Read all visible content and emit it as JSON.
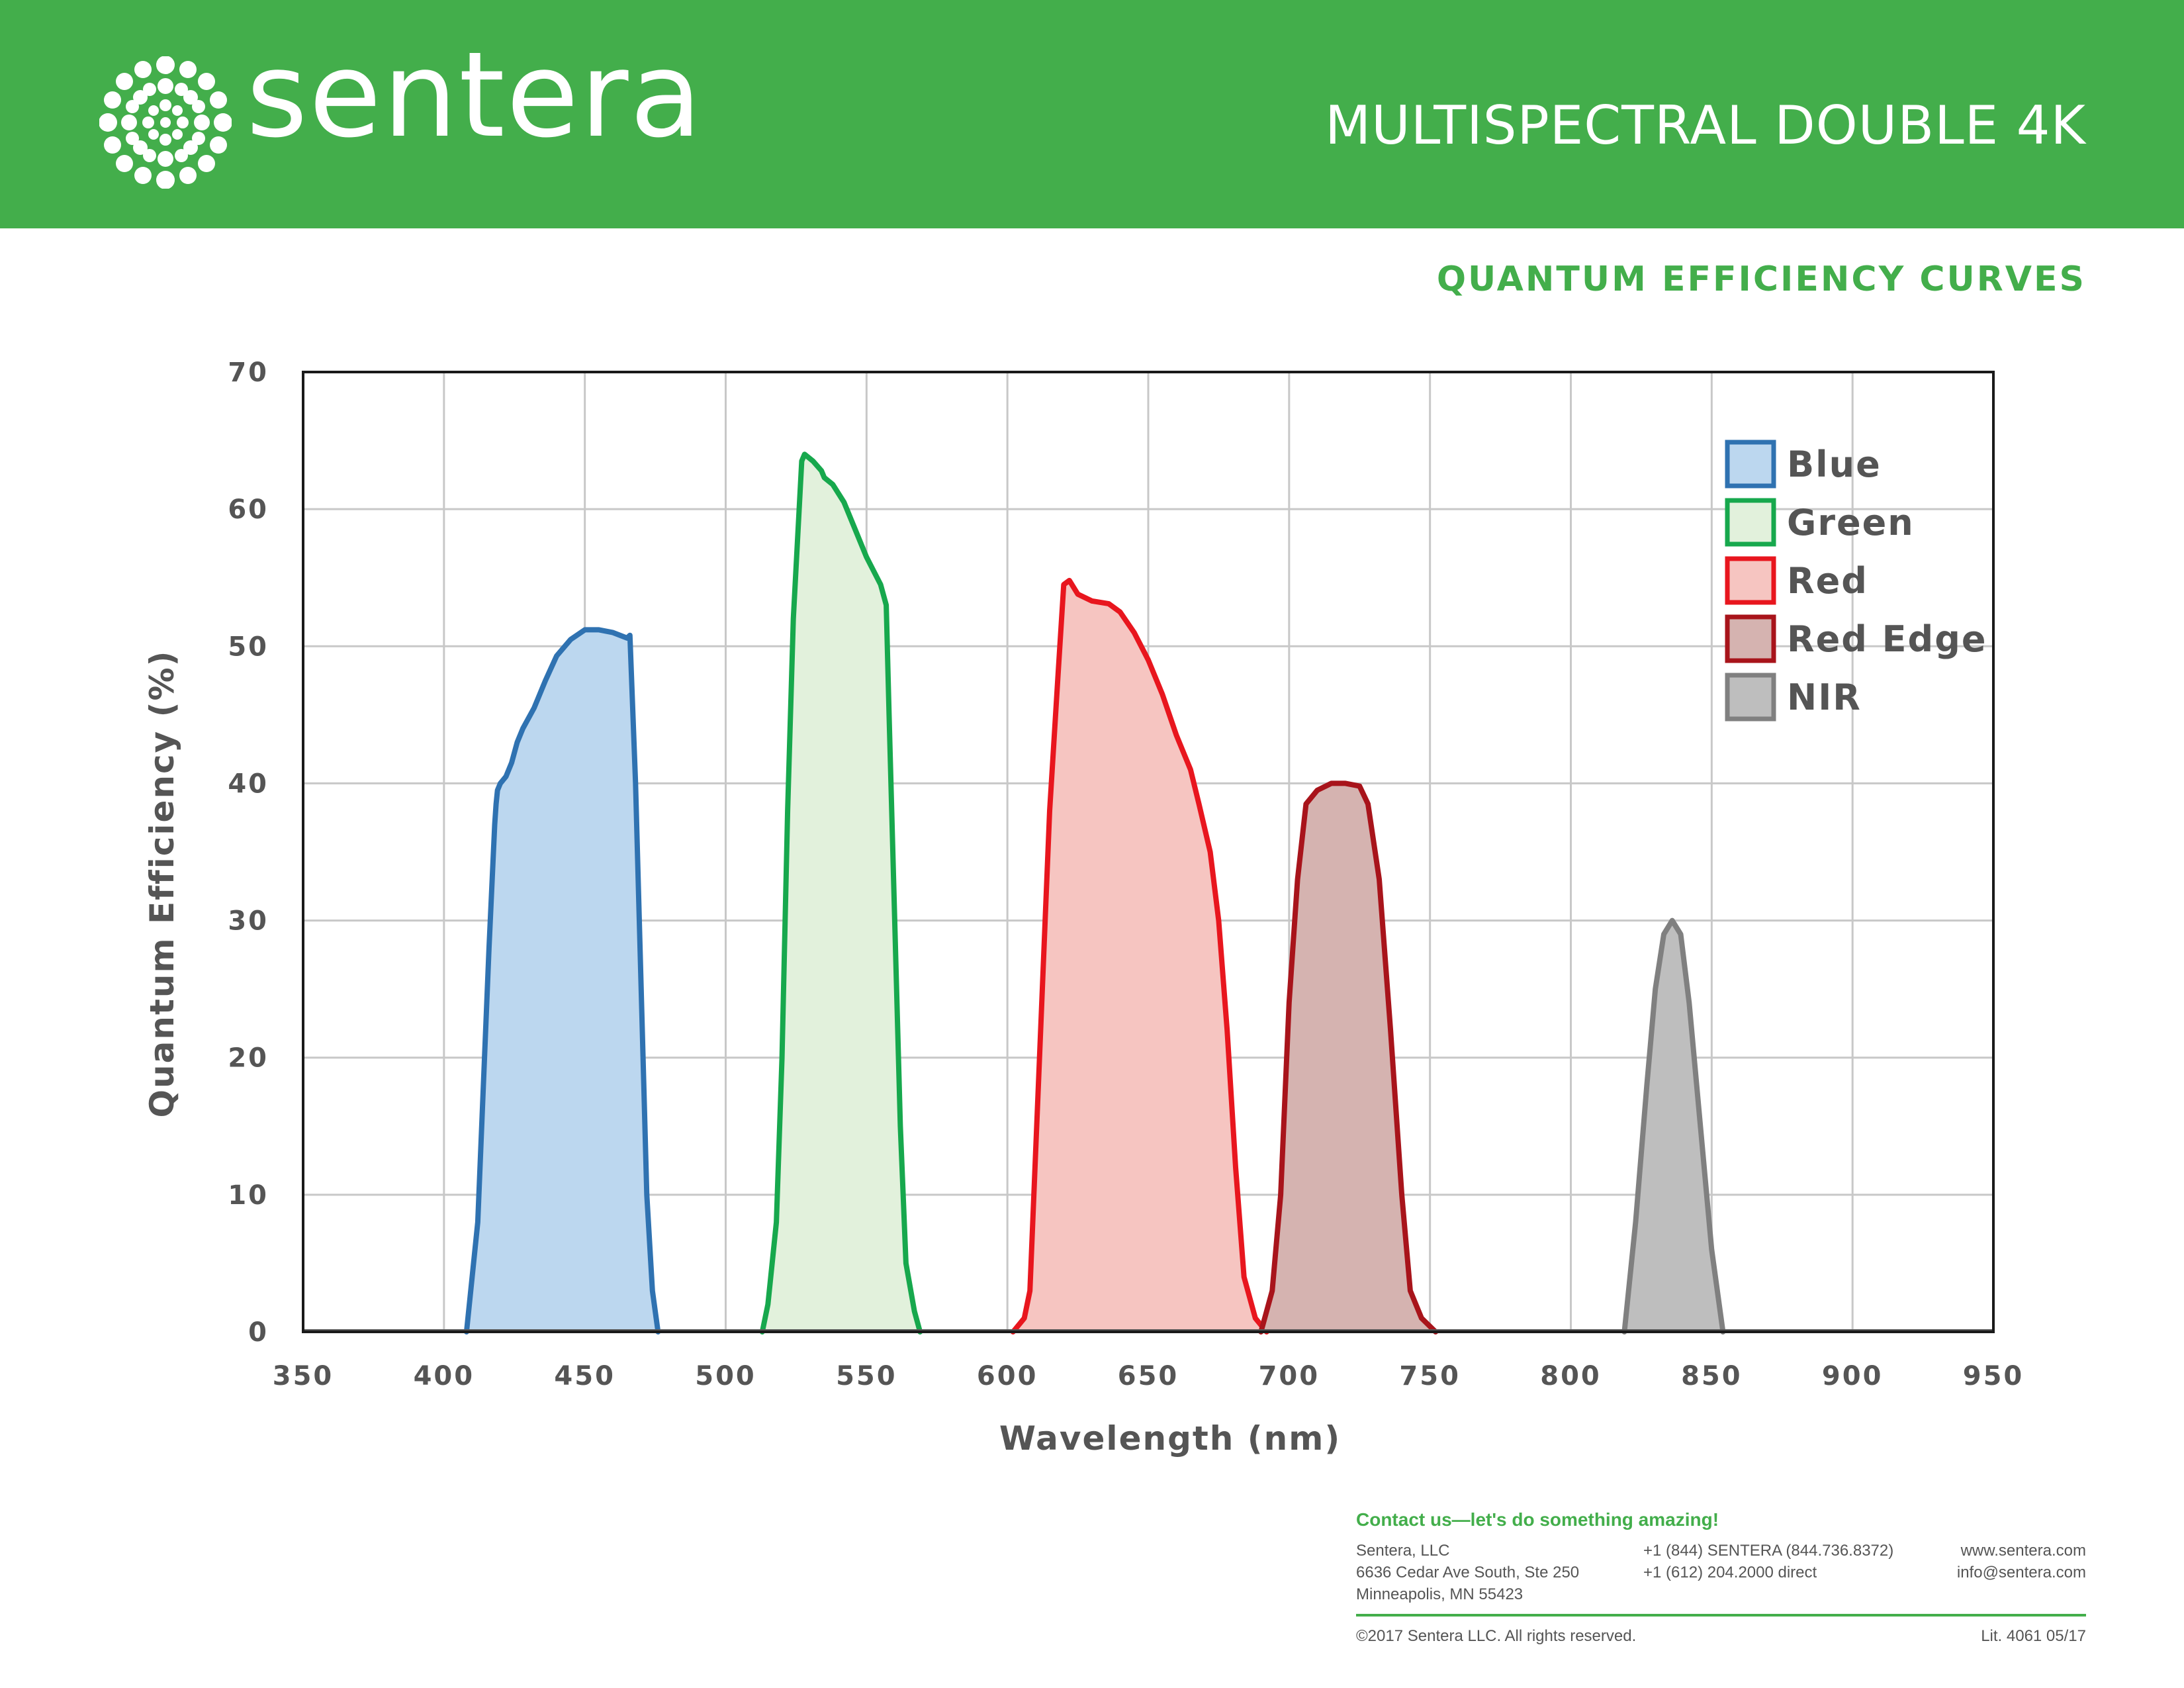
{
  "header": {
    "brand": "sentera",
    "product_title": "MULTISPECTRAL DOUBLE 4K",
    "background_color": "#43ae4b"
  },
  "section_title": "QUANTUM EFFICIENCY CURVES",
  "chart_data": {
    "type": "area",
    "title": "",
    "xlabel": "Wavelength (nm)",
    "ylabel": "Quantum Efficiency (%)",
    "xlim": [
      350,
      950
    ],
    "ylim": [
      0,
      70
    ],
    "x_ticks": [
      350,
      400,
      450,
      500,
      550,
      600,
      650,
      700,
      750,
      800,
      850,
      900,
      950
    ],
    "y_ticks": [
      0,
      10,
      20,
      30,
      40,
      50,
      60,
      70
    ],
    "grid": true,
    "legend_position": "top-right",
    "series": [
      {
        "name": "Blue",
        "stroke": "#2f72b1",
        "fill": "#bcd7ef",
        "points": [
          [
            408,
            0
          ],
          [
            412,
            8
          ],
          [
            414,
            18
          ],
          [
            416,
            28
          ],
          [
            418,
            37
          ],
          [
            418.5,
            38.5
          ],
          [
            419,
            39.5
          ],
          [
            420,
            40
          ],
          [
            422,
            40.5
          ],
          [
            424,
            41.5
          ],
          [
            426,
            43
          ],
          [
            428,
            44
          ],
          [
            432,
            45.5
          ],
          [
            436,
            47.5
          ],
          [
            440,
            49.3
          ],
          [
            445,
            50.5
          ],
          [
            450,
            51.2
          ],
          [
            455,
            51.2
          ],
          [
            460,
            51
          ],
          [
            465,
            50.6
          ],
          [
            466,
            50.8
          ],
          [
            468,
            40
          ],
          [
            470,
            25
          ],
          [
            472,
            10
          ],
          [
            474,
            3
          ],
          [
            476,
            0
          ]
        ]
      },
      {
        "name": "Green",
        "stroke": "#17a84d",
        "fill": "#e2f1dc",
        "points": [
          [
            513,
            0
          ],
          [
            515,
            2
          ],
          [
            518,
            8
          ],
          [
            520,
            20
          ],
          [
            522,
            38
          ],
          [
            524,
            52
          ],
          [
            527,
            63.5
          ],
          [
            528,
            64
          ],
          [
            531,
            63.5
          ],
          [
            534,
            62.8
          ],
          [
            535,
            62.3
          ],
          [
            538,
            61.8
          ],
          [
            542,
            60.5
          ],
          [
            546,
            58.5
          ],
          [
            550,
            56.5
          ],
          [
            555,
            54.5
          ],
          [
            557,
            53
          ],
          [
            558,
            45
          ],
          [
            560,
            30
          ],
          [
            562,
            15
          ],
          [
            564,
            5
          ],
          [
            567,
            1.5
          ],
          [
            569,
            0
          ]
        ]
      },
      {
        "name": "Red",
        "stroke": "#e8161e",
        "fill": "#f6c5c1",
        "points": [
          [
            602,
            0
          ],
          [
            606,
            1
          ],
          [
            608,
            3
          ],
          [
            611,
            18
          ],
          [
            615,
            38
          ],
          [
            618,
            48
          ],
          [
            620,
            54.5
          ],
          [
            622,
            54.8
          ],
          [
            625,
            53.8
          ],
          [
            630,
            53.3
          ],
          [
            636,
            53.1
          ],
          [
            640,
            52.5
          ],
          [
            645,
            51
          ],
          [
            650,
            49
          ],
          [
            655,
            46.5
          ],
          [
            660,
            43.5
          ],
          [
            665,
            41
          ],
          [
            668,
            38.5
          ],
          [
            672,
            35
          ],
          [
            675,
            30
          ],
          [
            678,
            22
          ],
          [
            681,
            12
          ],
          [
            684,
            4
          ],
          [
            688,
            1
          ],
          [
            692,
            0
          ]
        ]
      },
      {
        "name": "Red Edge",
        "stroke": "#a8141b",
        "fill": "#d5b3b0",
        "points": [
          [
            690,
            0
          ],
          [
            694,
            3
          ],
          [
            697,
            10
          ],
          [
            700,
            24
          ],
          [
            703,
            33
          ],
          [
            706,
            38.5
          ],
          [
            710,
            39.5
          ],
          [
            715,
            40
          ],
          [
            720,
            40
          ],
          [
            725,
            39.8
          ],
          [
            728,
            38.5
          ],
          [
            732,
            33
          ],
          [
            736,
            22
          ],
          [
            740,
            10
          ],
          [
            743,
            3
          ],
          [
            747,
            1
          ],
          [
            752,
            0
          ]
        ]
      },
      {
        "name": "NIR",
        "stroke": "#808080",
        "fill": "#bebebe",
        "points": [
          [
            819,
            0
          ],
          [
            823,
            8
          ],
          [
            827,
            18
          ],
          [
            830,
            25
          ],
          [
            833,
            29
          ],
          [
            836,
            30
          ],
          [
            839,
            29
          ],
          [
            842,
            24
          ],
          [
            846,
            15
          ],
          [
            850,
            6
          ],
          [
            854,
            0
          ]
        ]
      }
    ]
  },
  "footer": {
    "contact_heading": "Contact us—let's do something amazing!",
    "address_lines": [
      "Sentera, LLC",
      "6636 Cedar Ave South, Ste 250",
      "Minneapolis, MN 55423"
    ],
    "phone_lines": [
      "+1 (844) SENTERA (844.736.8372)",
      "+1 (612) 204.2000 direct"
    ],
    "web_lines": [
      "www.sentera.com",
      "info@sentera.com"
    ],
    "copyright": "©2017 Sentera LLC. All rights reserved.",
    "lit_number": "Lit. 4061 05/17"
  }
}
